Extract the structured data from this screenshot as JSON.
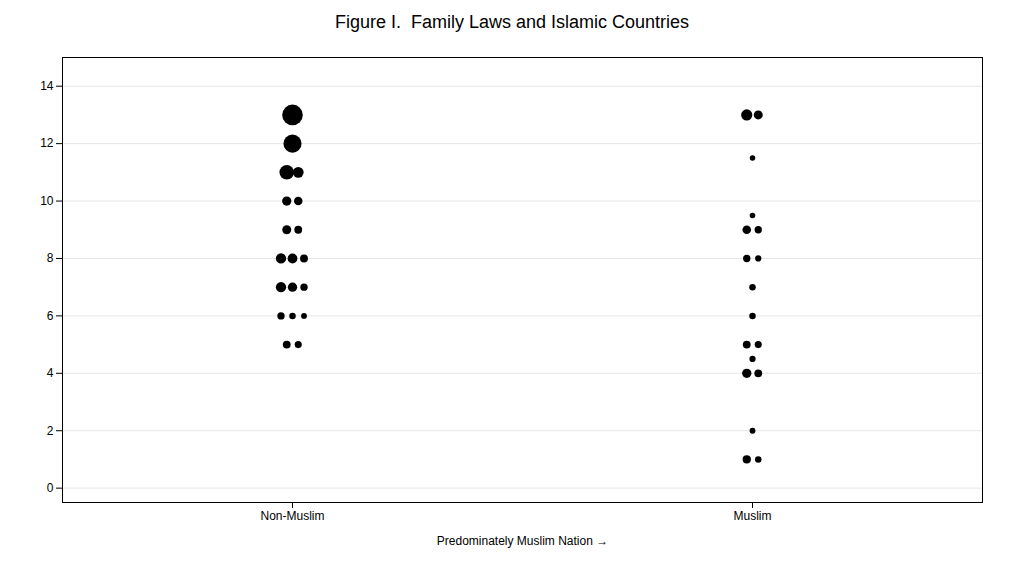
{
  "chart_data": {
    "type": "scatter",
    "title": "Figure I.  Family Laws and Islamic Countries",
    "xlabel": "Predominately Muslim Nation",
    "categories": [
      "Non-Muslim",
      "Muslim"
    ],
    "values": [
      [
        13,
        12,
        11,
        11,
        10,
        10,
        9,
        9,
        8,
        8,
        8,
        7,
        7,
        7,
        6,
        6,
        6,
        5,
        5
      ],
      [
        13,
        13,
        11.5,
        9.5,
        9,
        9,
        8,
        8,
        7,
        6,
        5,
        5,
        4.5,
        4,
        4,
        2,
        1,
        1
      ]
    ],
    "sizes": [
      [
        220,
        170,
        110,
        60,
        45,
        38,
        42,
        32,
        55,
        50,
        32,
        55,
        45,
        28,
        28,
        22,
        18,
        32,
        26
      ],
      [
        65,
        42,
        16,
        16,
        38,
        28,
        28,
        20,
        22,
        22,
        32,
        26,
        20,
        45,
        32,
        18,
        35,
        22
      ]
    ],
    "color": "#000000",
    "ylim": [
      -0.5,
      15
    ],
    "yticks": [
      0,
      2,
      4,
      6,
      8,
      10,
      12,
      14
    ],
    "grid": true
  }
}
